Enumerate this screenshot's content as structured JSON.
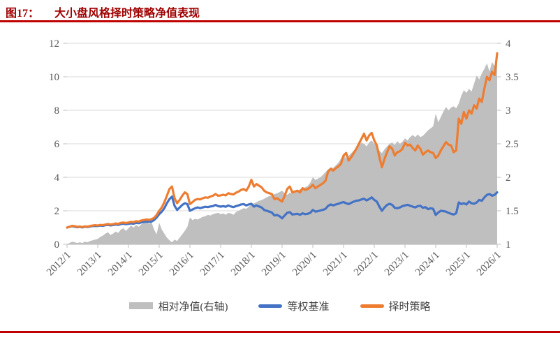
{
  "title": {
    "prefix": "图17：",
    "text": "大小盘风格择时策略净值表现"
  },
  "colors": {
    "title_red": "#A00000",
    "rule_red": "#C00000",
    "orange": "#ED7D31",
    "blue": "#4472C4",
    "gray_area": "#BFBFBF",
    "gridline": "#D9D9D9",
    "axis_line": "#BFBFBF",
    "axis_label": "#595959"
  },
  "legend": {
    "items": [
      {
        "label": "相对净值(右轴)",
        "swatch": "gray-area"
      },
      {
        "label": "等权基准",
        "swatch": "blue-line"
      },
      {
        "label": "择时策略",
        "swatch": "orange-line"
      }
    ]
  },
  "chart_data": {
    "type": "line",
    "title": "大小盘风格择时策略净值表现",
    "xlabel": "",
    "ylabel": "",
    "grid": true,
    "legend_position": "bottom",
    "x_tick_labels": [
      "2012/1",
      "2013/1",
      "2014/1",
      "2015/1",
      "2016/1",
      "2017/1",
      "2018/1",
      "2019/1",
      "2020/1",
      "2021/1",
      "2022/1",
      "2023/1",
      "2024/1",
      "2025/1",
      "2026/1"
    ],
    "x_monthly_start": "2012/1",
    "x_monthly_end": "2026/1",
    "left_axis": {
      "range": [
        0,
        12
      ],
      "ticks": [
        0,
        2,
        4,
        6,
        8,
        10,
        12
      ]
    },
    "right_axis": {
      "range": [
        1,
        4
      ],
      "ticks": [
        1,
        1.5,
        2,
        2.5,
        3,
        3.5,
        4
      ]
    },
    "series": [
      {
        "name": "相对净值(右轴)",
        "type": "area",
        "axis": "right",
        "color": "#BFBFBF",
        "values": [
          1.0,
          1.02,
          1.04,
          1.03,
          1.02,
          1.03,
          1.02,
          1.04,
          1.03,
          1.05,
          1.06,
          1.07,
          1.08,
          1.11,
          1.13,
          1.16,
          1.18,
          1.14,
          1.16,
          1.19,
          1.17,
          1.22,
          1.24,
          1.2,
          1.24,
          1.28,
          1.25,
          1.29,
          1.26,
          1.3,
          1.32,
          1.34,
          1.3,
          1.33,
          1.22,
          1.15,
          1.32,
          1.22,
          1.16,
          1.1,
          1.06,
          1.03,
          1.07,
          1.05,
          1.1,
          1.15,
          1.2,
          1.26,
          1.4,
          1.36,
          1.38,
          1.37,
          1.39,
          1.41,
          1.42,
          1.44,
          1.43,
          1.45,
          1.46,
          1.47,
          1.45,
          1.46,
          1.44,
          1.47,
          1.46,
          1.44,
          1.48,
          1.5,
          1.52,
          1.54,
          1.53,
          1.56,
          1.6,
          1.61,
          1.63,
          1.65,
          1.66,
          1.68,
          1.7,
          1.72,
          1.73,
          1.75,
          1.76,
          1.78,
          1.8,
          1.76,
          1.74,
          1.77,
          1.76,
          1.78,
          1.8,
          1.82,
          1.84,
          1.85,
          1.87,
          1.92,
          2.0,
          1.96,
          1.98,
          2.0,
          2.04,
          2.08,
          2.12,
          2.15,
          2.14,
          2.18,
          2.22,
          2.28,
          2.35,
          2.28,
          2.32,
          2.36,
          2.4,
          2.44,
          2.48,
          2.52,
          2.5,
          2.46,
          2.52,
          2.55,
          2.5,
          2.46,
          2.4,
          2.36,
          2.42,
          2.46,
          2.5,
          2.52,
          2.48,
          2.54,
          2.5,
          2.53,
          2.58,
          2.55,
          2.6,
          2.63,
          2.6,
          2.64,
          2.6,
          2.62,
          2.66,
          2.7,
          2.73,
          2.76,
          2.95,
          2.82,
          2.9,
          2.98,
          3.05,
          3.0,
          3.04,
          3.06,
          3.03,
          3.1,
          3.22,
          3.3,
          3.26,
          3.32,
          3.28,
          3.4,
          3.52,
          3.46,
          3.55,
          3.62,
          3.7,
          3.58,
          3.72,
          3.66,
          3.85
        ]
      },
      {
        "name": "等权基准",
        "type": "line",
        "axis": "left",
        "color": "#4472C4",
        "values": [
          1.0,
          1.04,
          1.08,
          1.05,
          1.02,
          1.04,
          1.01,
          1.05,
          1.03,
          1.06,
          1.09,
          1.1,
          1.09,
          1.12,
          1.1,
          1.14,
          1.16,
          1.13,
          1.15,
          1.18,
          1.16,
          1.21,
          1.23,
          1.2,
          1.22,
          1.25,
          1.23,
          1.28,
          1.26,
          1.31,
          1.33,
          1.35,
          1.33,
          1.36,
          1.45,
          1.6,
          1.8,
          1.95,
          2.15,
          2.45,
          2.7,
          2.85,
          2.3,
          2.05,
          2.2,
          2.35,
          2.45,
          2.4,
          2.0,
          2.08,
          2.15,
          2.2,
          2.16,
          2.2,
          2.24,
          2.22,
          2.26,
          2.28,
          2.35,
          2.28,
          2.25,
          2.28,
          2.24,
          2.32,
          2.26,
          2.22,
          2.28,
          2.32,
          2.38,
          2.4,
          2.32,
          2.38,
          2.42,
          2.25,
          2.32,
          2.26,
          2.2,
          2.05,
          2.0,
          1.95,
          1.9,
          1.72,
          1.75,
          1.68,
          1.55,
          1.72,
          1.88,
          1.92,
          1.78,
          1.8,
          1.82,
          1.76,
          1.85,
          1.8,
          1.82,
          1.88,
          2.05,
          1.95,
          1.98,
          2.02,
          2.06,
          2.12,
          2.3,
          2.38,
          2.32,
          2.38,
          2.42,
          2.48,
          2.52,
          2.45,
          2.4,
          2.48,
          2.55,
          2.6,
          2.62,
          2.68,
          2.72,
          2.62,
          2.7,
          2.8,
          2.65,
          2.55,
          2.25,
          2.0,
          2.2,
          2.35,
          2.42,
          2.35,
          2.18,
          2.15,
          2.2,
          2.28,
          2.32,
          2.36,
          2.3,
          2.25,
          2.2,
          2.28,
          2.3,
          2.18,
          2.22,
          2.1,
          2.15,
          2.12,
          1.75,
          1.9,
          2.0,
          1.98,
          1.95,
          1.88,
          1.82,
          1.78,
          1.85,
          2.5,
          2.4,
          2.45,
          2.38,
          2.55,
          2.45,
          2.42,
          2.5,
          2.65,
          2.6,
          2.8,
          2.95,
          3.0,
          2.9,
          2.95,
          3.1
        ]
      },
      {
        "name": "择时策略",
        "type": "line",
        "axis": "left",
        "color": "#ED7D31",
        "values": [
          1.0,
          1.05,
          1.1,
          1.08,
          1.04,
          1.06,
          1.03,
          1.07,
          1.05,
          1.09,
          1.12,
          1.14,
          1.12,
          1.16,
          1.14,
          1.18,
          1.21,
          1.18,
          1.2,
          1.24,
          1.22,
          1.28,
          1.3,
          1.27,
          1.3,
          1.34,
          1.32,
          1.38,
          1.36,
          1.42,
          1.45,
          1.48,
          1.46,
          1.5,
          1.58,
          1.75,
          2.0,
          2.2,
          2.5,
          2.9,
          3.3,
          3.45,
          2.75,
          2.45,
          2.65,
          2.9,
          3.1,
          3.0,
          2.4,
          2.52,
          2.65,
          2.7,
          2.68,
          2.75,
          2.8,
          2.78,
          2.85,
          2.9,
          3.0,
          2.9,
          2.92,
          2.96,
          2.92,
          3.05,
          3.0,
          2.98,
          3.08,
          3.15,
          3.25,
          3.3,
          3.2,
          3.45,
          3.85,
          3.45,
          3.6,
          3.5,
          3.4,
          3.2,
          3.1,
          3.05,
          3.0,
          2.7,
          2.75,
          2.65,
          2.55,
          2.9,
          3.3,
          3.45,
          3.1,
          3.15,
          3.2,
          3.1,
          3.35,
          3.25,
          3.3,
          3.4,
          3.55,
          3.35,
          3.45,
          3.55,
          3.65,
          3.8,
          4.35,
          4.5,
          4.4,
          4.55,
          4.65,
          4.8,
          5.3,
          5.45,
          5.0,
          5.2,
          5.45,
          5.7,
          6.0,
          6.3,
          6.6,
          6.2,
          6.5,
          6.65,
          6.2,
          5.9,
          5.2,
          4.6,
          5.1,
          5.5,
          5.85,
          5.7,
          5.3,
          5.5,
          5.55,
          5.7,
          6.05,
          5.9,
          5.95,
          5.75,
          5.6,
          5.9,
          5.7,
          5.35,
          5.5,
          5.6,
          5.5,
          5.45,
          5.15,
          5.3,
          5.6,
          5.85,
          6.1,
          5.95,
          5.9,
          5.5,
          5.6,
          7.5,
          7.2,
          7.9,
          7.5,
          8.0,
          7.8,
          8.3,
          8.1,
          8.7,
          8.5,
          9.3,
          10.0,
          9.8,
          10.3,
          10.1,
          11.4
        ]
      }
    ]
  }
}
